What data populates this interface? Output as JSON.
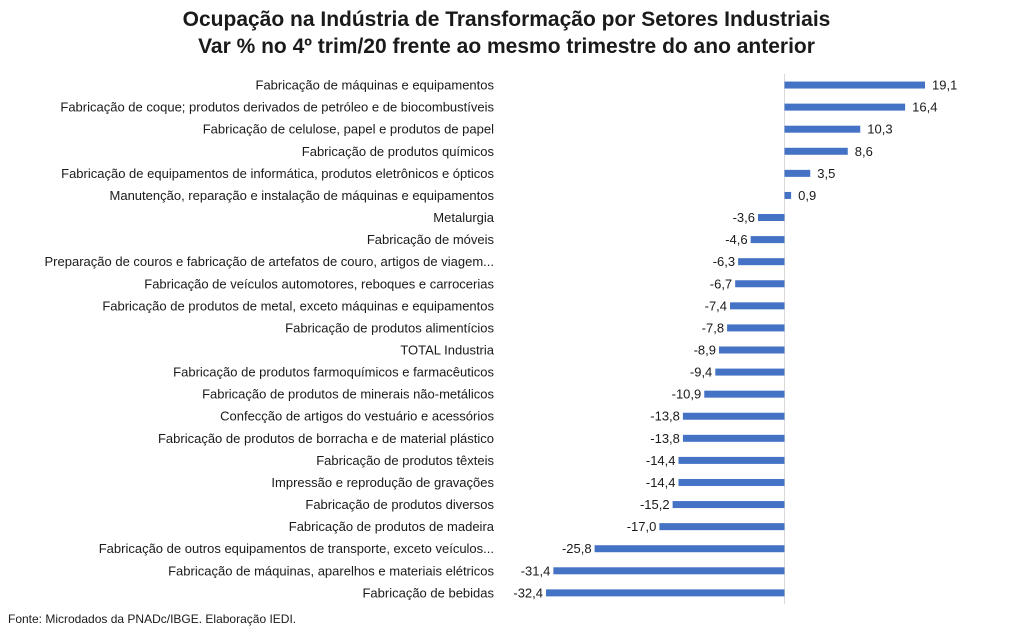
{
  "chart_data": {
    "type": "bar",
    "orientation": "horizontal",
    "title": "Ocupação na Indústria de Transformação por Setores Industriais",
    "subtitle": "Var % no 4º trim/20 frente ao mesmo trimestre do ano anterior",
    "categories": [
      "Fabricação de máquinas e equipamentos",
      "Fabricação de coque; produtos derivados de petróleo e de biocombustíveis",
      "Fabricação de celulose, papel e produtos de papel",
      "Fabricação de produtos químicos",
      "Fabricação de equipamentos de informática, produtos eletrônicos e ópticos",
      "Manutenção, reparação e instalação de máquinas e equipamentos",
      "Metalurgia",
      "Fabricação de móveis",
      "Preparação de couros e fabricação de artefatos de couro, artigos de viagem...",
      "Fabricação de veículos automotores, reboques e carrocerias",
      "Fabricação de produtos de metal, exceto máquinas e equipamentos",
      "Fabricação de produtos alimentícios",
      "TOTAL Industria",
      "Fabricação de produtos farmoquímicos e farmacêuticos",
      "Fabricação de produtos de minerais não-metálicos",
      "Confecção de artigos do vestuário e acessórios",
      "Fabricação de produtos de borracha e de material plástico",
      "Fabricação de produtos têxteis",
      "Impressão e reprodução de gravações",
      "Fabricação de produtos diversos",
      "Fabricação de produtos de madeira",
      "Fabricação de outros equipamentos de transporte, exceto veículos...",
      "Fabricação de máquinas, aparelhos e materiais elétricos",
      "Fabricação de bebidas"
    ],
    "values": [
      19.1,
      16.4,
      10.3,
      8.6,
      3.5,
      0.9,
      -3.6,
      -4.6,
      -6.3,
      -6.7,
      -7.4,
      -7.8,
      -8.9,
      -9.4,
      -10.9,
      -13.8,
      -13.8,
      -14.4,
      -14.4,
      -15.2,
      -17.0,
      -25.8,
      -31.4,
      -32.4
    ],
    "value_labels": [
      "19,1",
      "16,4",
      "10,3",
      "8,6",
      "3,5",
      "0,9",
      "-3,6",
      "-4,6",
      "-6,3",
      "-6,7",
      "-7,4",
      "-7,8",
      "-8,9",
      "-9,4",
      "-10,9",
      "-13,8",
      "-13,8",
      "-14,4",
      "-14,4",
      "-15,2",
      "-17,0",
      "-25,8",
      "-31,4",
      "-32,4"
    ],
    "xlim": [
      -32.4,
      19.1
    ],
    "grid": false,
    "legend": "none",
    "bar_color": "#4472c4"
  },
  "footer": {
    "source": "Fonte: Microdados da PNADc/IBGE. Elaboração IEDI."
  }
}
